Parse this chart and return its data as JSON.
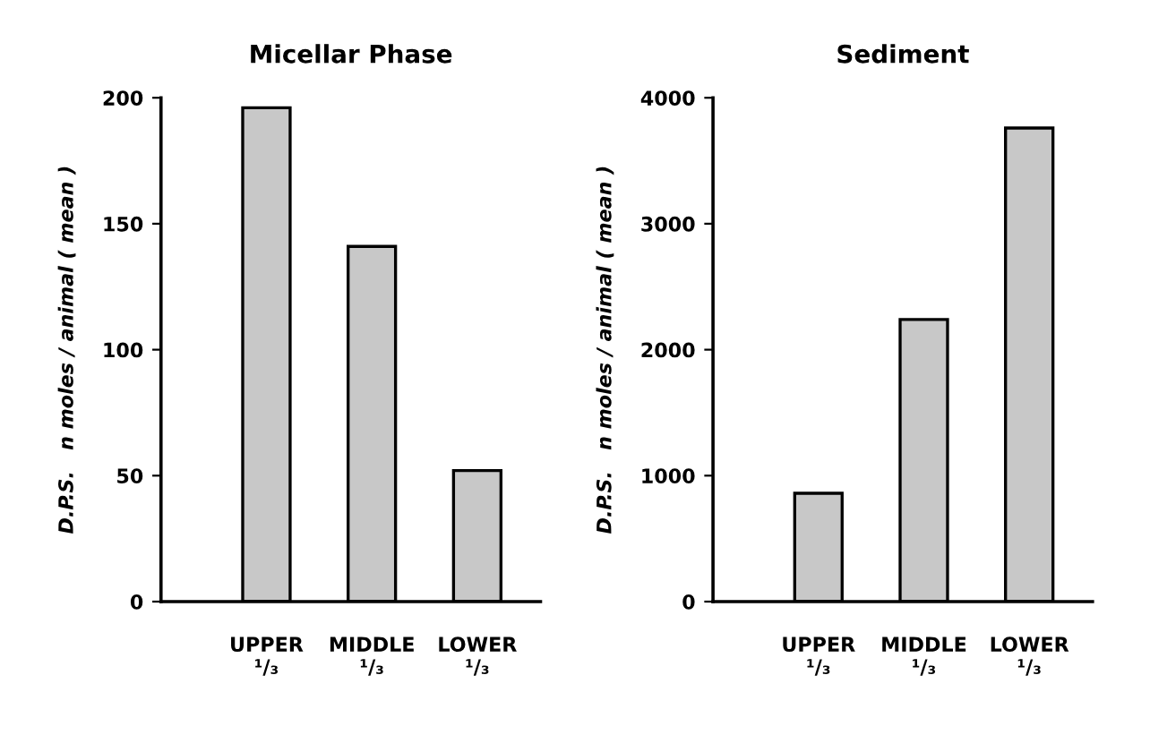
{
  "chart_data": [
    {
      "type": "bar",
      "title": "Micellar Phase",
      "ylabel": "D.P.S.   n moles / animal ( mean )",
      "categories": [
        "UPPER\n¹/₃",
        "MIDDLE\n¹/₃",
        "LOWER\n¹/₃"
      ],
      "values": [
        196,
        141,
        52
      ],
      "color": "#c8c8c8",
      "ylim": [
        0,
        200
      ],
      "yticks": [
        0,
        50,
        100,
        150,
        200
      ],
      "grid": false
    },
    {
      "type": "bar",
      "title": "Sediment",
      "ylabel": "D.P.S.   n moles / animal ( mean )",
      "categories": [
        "UPPER\n¹/₃",
        "MIDDLE\n¹/₃",
        "LOWER\n¹/₃"
      ],
      "values": [
        860,
        2240,
        3760
      ],
      "color": "#c8c8c8",
      "ylim": [
        0,
        4000
      ],
      "yticks": [
        0,
        1000,
        2000,
        3000,
        4000
      ],
      "grid": false
    }
  ]
}
